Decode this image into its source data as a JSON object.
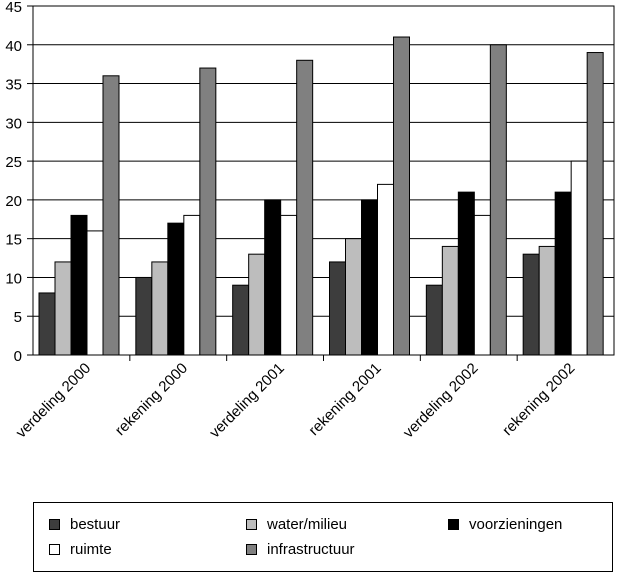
{
  "chart_data": {
    "type": "bar",
    "categories": [
      "verdeling 2000",
      "rekening 2000",
      "verdeling 2001",
      "rekening 2001",
      "verdeling 2002",
      "rekening 2002"
    ],
    "series": [
      {
        "name": "bestuur",
        "color": "#3d3d3d",
        "values": [
          8,
          10,
          9,
          12,
          9,
          13
        ]
      },
      {
        "name": "water/milieu",
        "color": "#bdbdbd",
        "values": [
          12,
          12,
          13,
          15,
          14,
          14
        ]
      },
      {
        "name": "voorzieningen",
        "color": "#000000",
        "values": [
          18,
          17,
          20,
          20,
          21,
          21
        ]
      },
      {
        "name": "ruimte",
        "color": "#ffffff",
        "values": [
          16,
          18,
          18,
          22,
          18,
          25
        ]
      },
      {
        "name": "infrastructuur",
        "color": "#808080",
        "values": [
          36,
          37,
          38,
          41,
          40,
          39
        ]
      }
    ],
    "y_ticks": [
      "0",
      "5",
      "10",
      "15",
      "20",
      "25",
      "30",
      "35",
      "40",
      "45"
    ],
    "ylim": [
      0,
      45
    ],
    "grid": true,
    "legend_position": "bottom"
  }
}
